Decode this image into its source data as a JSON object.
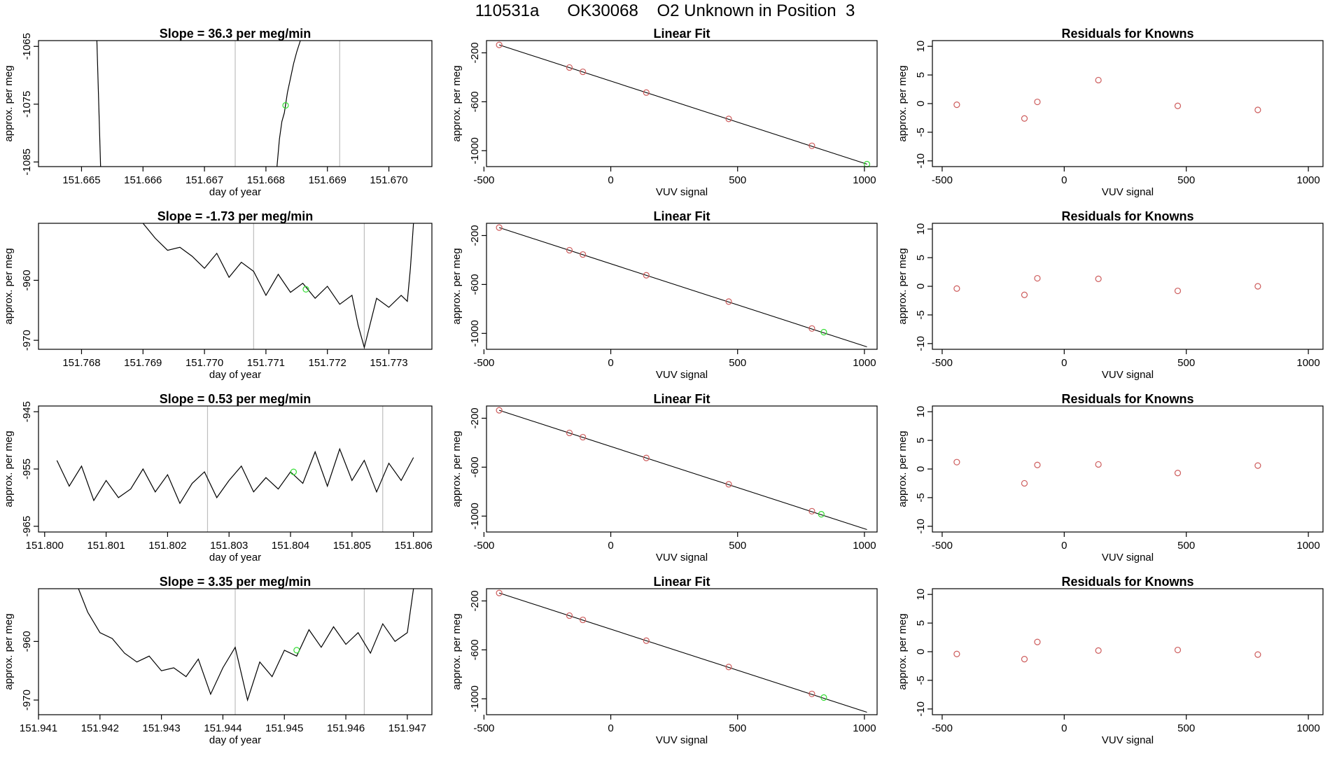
{
  "header": {
    "title_parts": [
      "110531a",
      "OK30068",
      "O2 Unknown in Position  3"
    ]
  },
  "colors": {
    "trace": "#000000",
    "known": "#cd5c5c",
    "unknown": "#33dd33",
    "interval": "#bebebe"
  },
  "chart_data": [
    {
      "row": 1,
      "panel": "time-series",
      "type": "line",
      "title_prefix": "Slope = ",
      "slope": "36.3",
      "title_suffix": " per meg/min",
      "xlabel": "day of year",
      "ylabel": "approx. per meg",
      "xlim": [
        151.6643,
        151.6707
      ],
      "ylim": [
        -1085.8,
        -1064.0
      ],
      "xticks": [
        151.665,
        151.666,
        151.667,
        151.668,
        151.669,
        151.67
      ],
      "xtick_labels": [
        "151.665",
        "151.666",
        "151.667",
        "151.668",
        "151.669",
        "151.670"
      ],
      "yticks": [
        -1065,
        -1075,
        -1085
      ],
      "ytick_labels": [
        "-1065",
        "-1075",
        "-1085"
      ],
      "intervals": [
        151.6675,
        151.6692
      ],
      "series": [
        {
          "name": "trace-left",
          "x": [
            151.66525,
            151.66531
          ],
          "y": [
            -1064.0,
            -1085.8
          ]
        },
        {
          "name": "trace-right",
          "x": [
            151.66818,
            151.66822,
            151.66826,
            151.6683,
            151.66835,
            151.6684,
            151.66845,
            151.6685,
            151.66856
          ],
          "y": [
            -1085.8,
            -1081.0,
            -1078.0,
            -1076.5,
            -1073.0,
            -1070.5,
            -1068.0,
            -1066.0,
            -1064.0
          ]
        }
      ],
      "marker": {
        "x": 151.66832,
        "y": -1075.2
      }
    },
    {
      "row": 1,
      "panel": "linear-fit",
      "type": "scatter",
      "title": "Linear Fit",
      "xlabel": "VUV signal",
      "ylabel": "approx. per meg",
      "xlim": [
        -490,
        1050
      ],
      "ylim": [
        -1130,
        -100
      ],
      "xticks": [
        -500,
        0,
        500,
        1000
      ],
      "xtick_labels": [
        "-500",
        "0",
        "500",
        "1000"
      ],
      "yticks": [
        -200,
        -600,
        -1000
      ],
      "ytick_labels": [
        "-200",
        "-600",
        "-1000"
      ],
      "fit_line": {
        "x": [
          -440,
          1010
        ],
        "y": [
          -135,
          -1110
        ]
      },
      "knowns": {
        "x": [
          -440,
          -163,
          -110,
          140,
          465,
          793
        ],
        "y": [
          -135,
          -320,
          -355,
          -525,
          -740,
          -960
        ]
      },
      "unknown": {
        "x": 1010,
        "y": -1110
      }
    },
    {
      "row": 1,
      "panel": "residuals",
      "type": "scatter",
      "title": "Residuals for Knowns",
      "xlabel": "VUV signal",
      "ylabel": "approx. per meg",
      "xlim": [
        -540,
        1060
      ],
      "ylim": [
        -11,
        11
      ],
      "xticks": [
        -500,
        0,
        500,
        1000
      ],
      "xtick_labels": [
        "-500",
        "0",
        "500",
        "1000"
      ],
      "yticks": [
        10,
        5,
        0,
        -5,
        -10
      ],
      "ytick_labels": [
        "10",
        "5",
        "0",
        "-5",
        "-10"
      ],
      "points": {
        "x": [
          -440,
          -163,
          -110,
          140,
          465,
          793
        ],
        "y": [
          -0.2,
          -2.6,
          0.3,
          4.1,
          -0.4,
          -1.1
        ]
      }
    },
    {
      "row": 2,
      "panel": "time-series",
      "type": "line",
      "title_prefix": "Slope = ",
      "slope": "-1.73",
      "title_suffix": " per meg/min",
      "xlabel": "day of year",
      "ylabel": "approx. per meg",
      "xlim": [
        151.7673,
        151.7737
      ],
      "ylim": [
        -971.5,
        -950.5
      ],
      "xticks": [
        151.768,
        151.769,
        151.77,
        151.771,
        151.772,
        151.773
      ],
      "xtick_labels": [
        "151.768",
        "151.769",
        "151.770",
        "151.771",
        "151.772",
        "151.773"
      ],
      "yticks": [
        -960,
        -970
      ],
      "ytick_labels": [
        "-960",
        "-970"
      ],
      "intervals": [
        151.7708,
        151.7726
      ],
      "series": [
        {
          "name": "trace",
          "x": [
            151.769,
            151.7692,
            151.7694,
            151.7696,
            151.7698,
            151.77,
            151.7702,
            151.7704,
            151.7706,
            151.7708,
            151.771,
            151.7712,
            151.7714,
            151.7716,
            151.7718,
            151.772,
            151.7722,
            151.7724,
            151.7725,
            151.7726,
            151.7728,
            151.773,
            151.7732,
            151.7733,
            151.77335,
            151.7734
          ],
          "y": [
            -950.5,
            -953.0,
            -955.0,
            -954.5,
            -956.0,
            -958.0,
            -955.5,
            -959.5,
            -957.0,
            -958.5,
            -962.5,
            -959.0,
            -962.0,
            -960.5,
            -963.0,
            -961.0,
            -964.0,
            -962.5,
            -967.5,
            -971.2,
            -963.0,
            -964.5,
            -962.5,
            -963.5,
            -958.0,
            -950.5
          ]
        }
      ],
      "marker": {
        "x": 151.77165,
        "y": -961.5
      }
    },
    {
      "row": 2,
      "panel": "linear-fit",
      "type": "scatter",
      "title": "Linear Fit",
      "xlabel": "VUV signal",
      "ylabel": "approx. per meg",
      "xlim": [
        -490,
        1050
      ],
      "ylim": [
        -1130,
        -100
      ],
      "xticks": [
        -500,
        0,
        500,
        1000
      ],
      "xtick_labels": [
        "-500",
        "0",
        "500",
        "1000"
      ],
      "yticks": [
        -200,
        -600,
        -1000
      ],
      "ytick_labels": [
        "-200",
        "-600",
        "-1000"
      ],
      "fit_line": {
        "x": [
          -440,
          1010
        ],
        "y": [
          -135,
          -1110
        ]
      },
      "knowns": {
        "x": [
          -440,
          -163,
          -110,
          140,
          465,
          793
        ],
        "y": [
          -135,
          -320,
          -355,
          -525,
          -740,
          -960
        ]
      },
      "unknown": {
        "x": 840,
        "y": -990
      }
    },
    {
      "row": 2,
      "panel": "residuals",
      "type": "scatter",
      "title": "Residuals for Knowns",
      "xlabel": "VUV signal",
      "ylabel": "approx. per meg",
      "xlim": [
        -540,
        1060
      ],
      "ylim": [
        -11,
        11
      ],
      "xticks": [
        -500,
        0,
        500,
        1000
      ],
      "xtick_labels": [
        "-500",
        "0",
        "500",
        "1000"
      ],
      "yticks": [
        10,
        5,
        0,
        -5,
        -10
      ],
      "ytick_labels": [
        "10",
        "5",
        "0",
        "-5",
        "-10"
      ],
      "points": {
        "x": [
          -440,
          -163,
          -110,
          140,
          465,
          793
        ],
        "y": [
          -0.4,
          -1.5,
          1.4,
          1.3,
          -0.8,
          0.0
        ]
      }
    },
    {
      "row": 3,
      "panel": "time-series",
      "type": "line",
      "title_prefix": "Slope = ",
      "slope": "0.53",
      "title_suffix": " per meg/min",
      "xlabel": "day of year",
      "ylabel": "approx. per meg",
      "xlim": [
        151.7999,
        151.8063
      ],
      "ylim": [
        -966,
        -944
      ],
      "xticks": [
        151.8,
        151.801,
        151.802,
        151.803,
        151.804,
        151.805,
        151.806
      ],
      "xtick_labels": [
        "151.800",
        "151.801",
        "151.802",
        "151.803",
        "151.804",
        "151.805",
        "151.806"
      ],
      "yticks": [
        -945,
        -955,
        -965
      ],
      "ytick_labels": [
        "-945",
        "-955",
        "-965"
      ],
      "intervals": [
        151.80265,
        151.8055
      ],
      "series": [
        {
          "name": "trace",
          "x": [
            151.8002,
            151.8004,
            151.8006,
            151.8008,
            151.801,
            151.8012,
            151.8014,
            151.8016,
            151.8018,
            151.802,
            151.8022,
            151.8024,
            151.8026,
            151.8028,
            151.803,
            151.8032,
            151.8034,
            151.8036,
            151.8038,
            151.804,
            151.8042,
            151.8044,
            151.8046,
            151.8048,
            151.805,
            151.8052,
            151.8054,
            151.8056,
            151.8058,
            151.806
          ],
          "y": [
            -953.5,
            -958.0,
            -954.5,
            -960.5,
            -957.0,
            -960.0,
            -958.5,
            -955.0,
            -959.0,
            -956.0,
            -961.0,
            -957.5,
            -955.5,
            -960.0,
            -957.0,
            -954.5,
            -959.0,
            -956.5,
            -958.5,
            -955.5,
            -957.5,
            -952.0,
            -958.0,
            -951.5,
            -957.0,
            -953.5,
            -959.0,
            -954.0,
            -957.0,
            -953.0
          ]
        }
      ],
      "marker": {
        "x": 151.80405,
        "y": -955.5
      }
    },
    {
      "row": 3,
      "panel": "linear-fit",
      "type": "scatter",
      "title": "Linear Fit",
      "xlabel": "VUV signal",
      "ylabel": "approx. per meg",
      "xlim": [
        -490,
        1050
      ],
      "ylim": [
        -1130,
        -100
      ],
      "xticks": [
        -500,
        0,
        500,
        1000
      ],
      "xtick_labels": [
        "-500",
        "0",
        "500",
        "1000"
      ],
      "yticks": [
        -200,
        -600,
        -1000
      ],
      "ytick_labels": [
        "-200",
        "-600",
        "-1000"
      ],
      "fit_line": {
        "x": [
          -440,
          1010
        ],
        "y": [
          -135,
          -1110
        ]
      },
      "knowns": {
        "x": [
          -440,
          -163,
          -110,
          140,
          465,
          793
        ],
        "y": [
          -135,
          -320,
          -355,
          -525,
          -740,
          -960
        ]
      },
      "unknown": {
        "x": 830,
        "y": -985
      }
    },
    {
      "row": 3,
      "panel": "residuals",
      "type": "scatter",
      "title": "Residuals for Knowns",
      "xlabel": "VUV signal",
      "ylabel": "approx. per meg",
      "xlim": [
        -540,
        1060
      ],
      "ylim": [
        -11,
        11
      ],
      "xticks": [
        -500,
        0,
        500,
        1000
      ],
      "xtick_labels": [
        "-500",
        "0",
        "500",
        "1000"
      ],
      "yticks": [
        10,
        5,
        0,
        -5,
        -10
      ],
      "ytick_labels": [
        "10",
        "5",
        "0",
        "-5",
        "-10"
      ],
      "points": {
        "x": [
          -440,
          -163,
          -110,
          140,
          465,
          793
        ],
        "y": [
          1.2,
          -2.5,
          0.7,
          0.8,
          -0.7,
          0.6
        ]
      }
    },
    {
      "row": 4,
      "panel": "time-series",
      "type": "line",
      "title_prefix": "Slope = ",
      "slope": "3.35",
      "title_suffix": " per meg/min",
      "xlabel": "day of year",
      "ylabel": "approx. per meg",
      "xlim": [
        151.941,
        151.9474
      ],
      "ylim": [
        -972.5,
        -951.0
      ],
      "xticks": [
        151.941,
        151.942,
        151.943,
        151.944,
        151.945,
        151.946,
        151.947
      ],
      "xtick_labels": [
        "151.941",
        "151.942",
        "151.943",
        "151.944",
        "151.945",
        "151.946",
        "151.947"
      ],
      "yticks": [
        -960,
        -970
      ],
      "ytick_labels": [
        "-960",
        "-970"
      ],
      "intervals": [
        151.9442,
        151.9463
      ],
      "series": [
        {
          "name": "trace",
          "x": [
            151.94165,
            151.9418,
            151.942,
            151.9422,
            151.9424,
            151.9426,
            151.9428,
            151.943,
            151.9432,
            151.9434,
            151.9436,
            151.9438,
            151.944,
            151.9442,
            151.9444,
            151.9446,
            151.9448,
            151.945,
            151.9452,
            151.9454,
            151.9456,
            151.9458,
            151.946,
            151.9462,
            151.9464,
            151.9466,
            151.9468,
            151.947,
            151.9471
          ],
          "y": [
            -951.0,
            -955.0,
            -958.5,
            -959.5,
            -962.0,
            -963.5,
            -962.5,
            -965.0,
            -964.5,
            -966.0,
            -963.0,
            -969.0,
            -964.5,
            -961.0,
            -970.0,
            -963.5,
            -966.0,
            -961.5,
            -962.5,
            -958.0,
            -961.0,
            -957.5,
            -960.5,
            -958.5,
            -962.0,
            -957.0,
            -960.0,
            -958.5,
            -951.0
          ]
        }
      ],
      "marker": {
        "x": 151.9452,
        "y": -961.5
      }
    },
    {
      "row": 4,
      "panel": "linear-fit",
      "type": "scatter",
      "title": "Linear Fit",
      "xlabel": "VUV signal",
      "ylabel": "approx. per meg",
      "xlim": [
        -490,
        1050
      ],
      "ylim": [
        -1130,
        -100
      ],
      "xticks": [
        -500,
        0,
        500,
        1000
      ],
      "xtick_labels": [
        "-500",
        "0",
        "500",
        "1000"
      ],
      "yticks": [
        -200,
        -600,
        -1000
      ],
      "ytick_labels": [
        "-200",
        "-600",
        "-1000"
      ],
      "fit_line": {
        "x": [
          -440,
          1010
        ],
        "y": [
          -135,
          -1110
        ]
      },
      "knowns": {
        "x": [
          -440,
          -163,
          -110,
          140,
          465,
          793
        ],
        "y": [
          -135,
          -320,
          -355,
          -525,
          -740,
          -960
        ]
      },
      "unknown": {
        "x": 840,
        "y": -990
      }
    },
    {
      "row": 4,
      "panel": "residuals",
      "type": "scatter",
      "title": "Residuals for Knowns",
      "xlabel": "VUV signal",
      "ylabel": "approx. per meg",
      "xlim": [
        -540,
        1060
      ],
      "ylim": [
        -11,
        11
      ],
      "xticks": [
        -500,
        0,
        500,
        1000
      ],
      "xtick_labels": [
        "-500",
        "0",
        "500",
        "1000"
      ],
      "yticks": [
        10,
        5,
        0,
        -5,
        -10
      ],
      "ytick_labels": [
        "10",
        "5",
        "0",
        "-5",
        "-10"
      ],
      "points": {
        "x": [
          -440,
          -163,
          -110,
          140,
          465,
          793
        ],
        "y": [
          -0.4,
          -1.3,
          1.7,
          0.2,
          0.3,
          -0.5
        ]
      }
    }
  ]
}
